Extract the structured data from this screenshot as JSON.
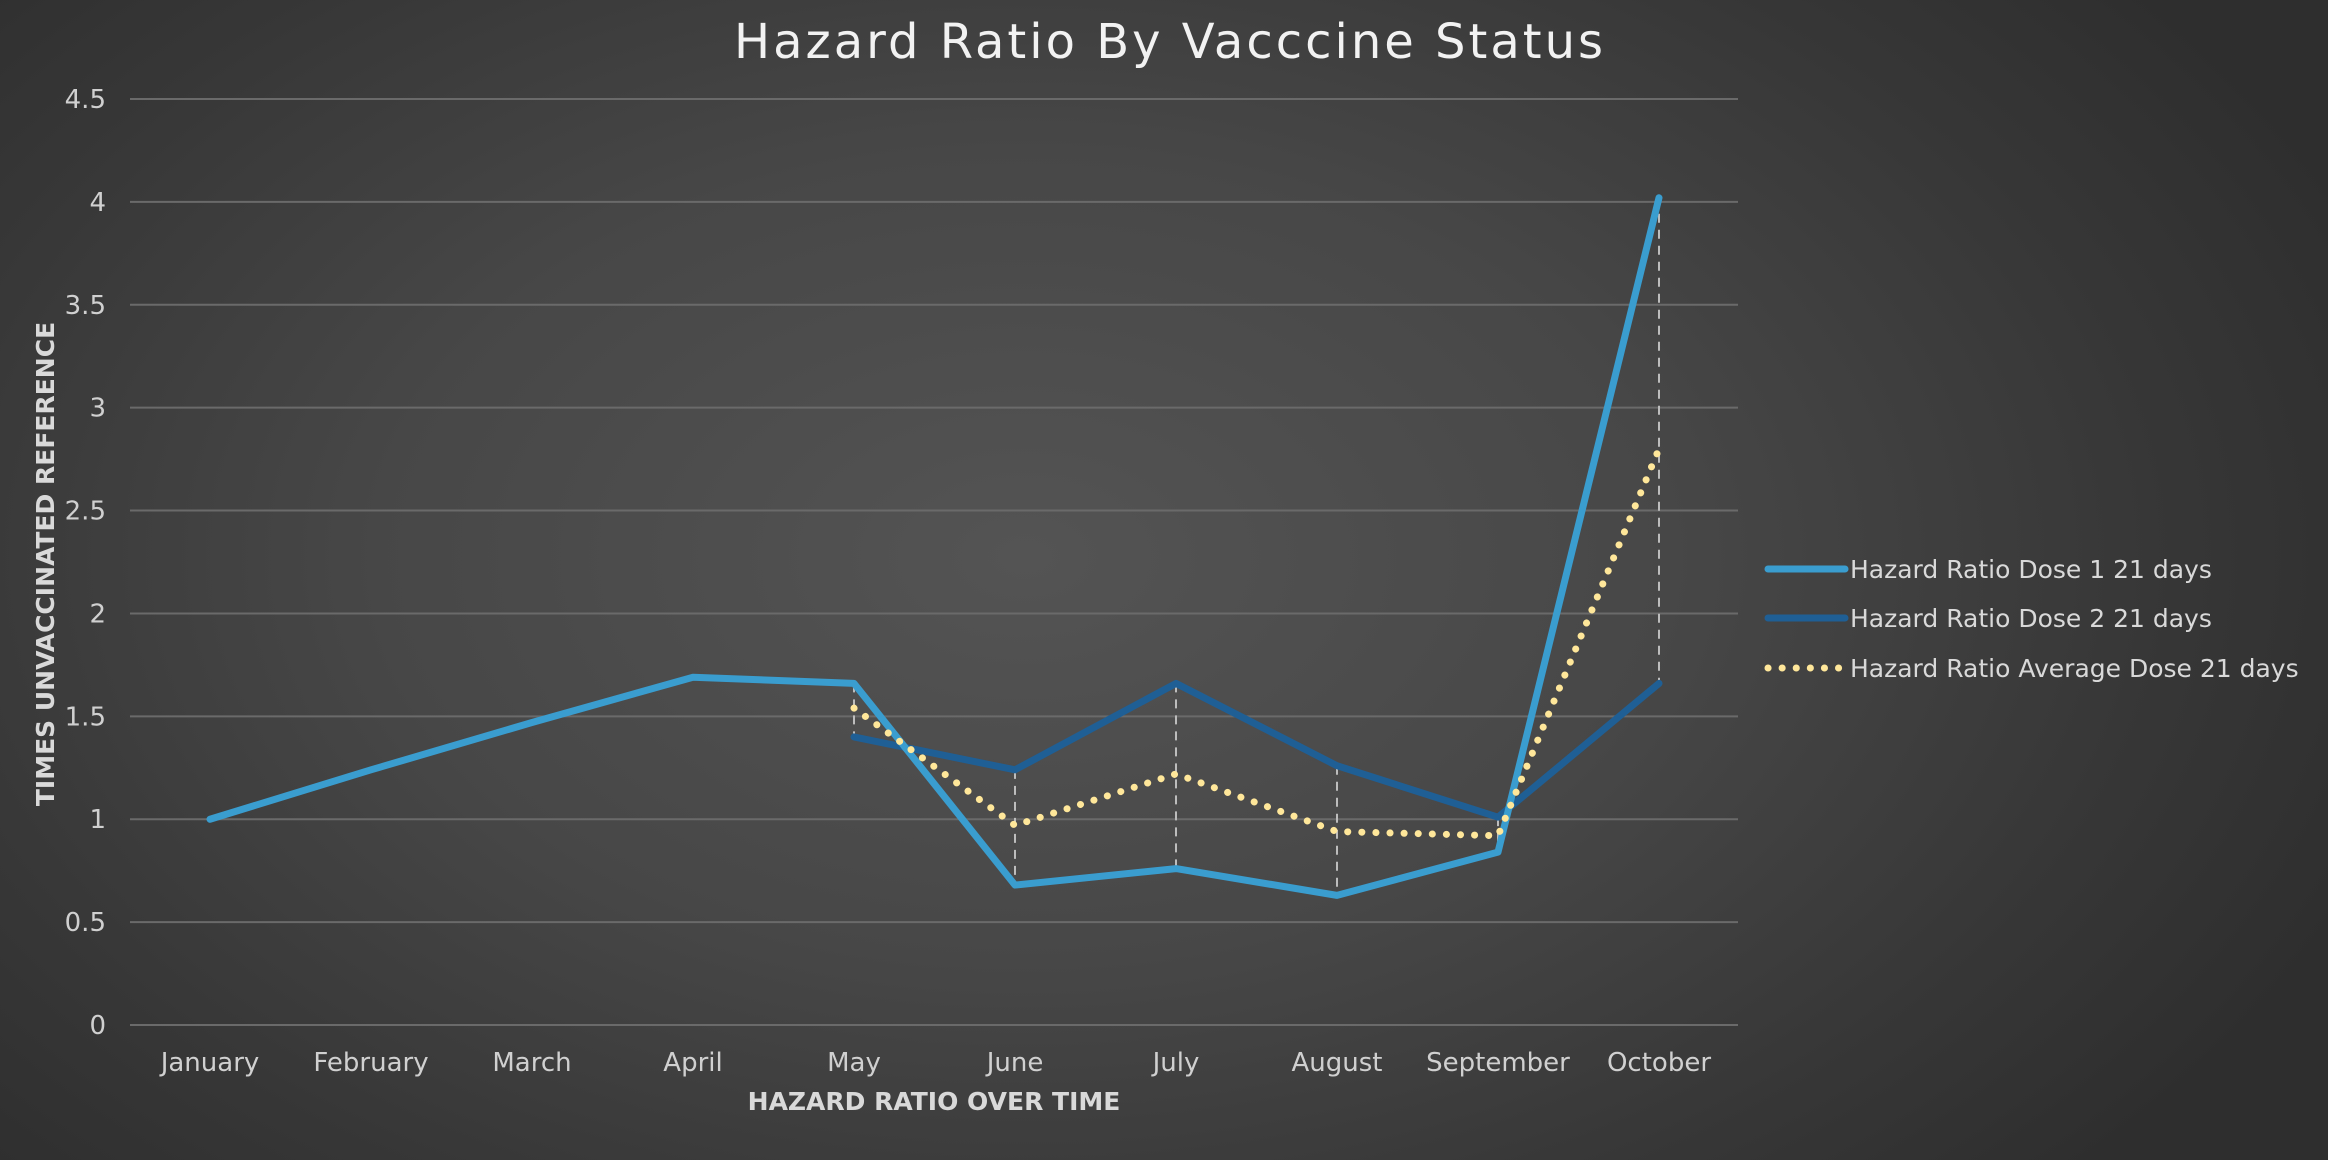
{
  "chart_data": {
    "type": "line",
    "title": "Hazard Ratio By Vacccine Status",
    "xlabel": "HAZARD RATIO OVER TIME",
    "ylabel": "TIMES UNVACCINATED REFERENCE",
    "categories": [
      "January",
      "February",
      "March",
      "April",
      "May",
      "June",
      "July",
      "August",
      "September",
      "October"
    ],
    "ylim": [
      0,
      4.5
    ],
    "yticks": [
      "0",
      "0.5",
      "1",
      "1.5",
      "2",
      "2.5",
      "3",
      "3.5",
      "4",
      "4.5"
    ],
    "grid": true,
    "legend_position": "right",
    "drop_lines": true,
    "series": [
      {
        "name": "Hazard Ratio Dose 1 21 days",
        "values": [
          1.0,
          1.24,
          1.47,
          1.69,
          1.66,
          0.68,
          0.76,
          0.63,
          0.84,
          4.02
        ],
        "color": "#3a9dcf",
        "style": "solid"
      },
      {
        "name": "Hazard Ratio Dose 2 21 days",
        "values": [
          null,
          null,
          null,
          null,
          1.4,
          1.24,
          1.66,
          1.26,
          1.01,
          1.66
        ],
        "color": "#1f5f95",
        "style": "solid"
      },
      {
        "name": "Hazard Ratio Average Dose 21 days",
        "values": [
          null,
          null,
          null,
          null,
          1.54,
          0.97,
          1.22,
          0.94,
          0.92,
          2.8
        ],
        "color": "#ffe79a",
        "style": "dotted"
      }
    ]
  }
}
